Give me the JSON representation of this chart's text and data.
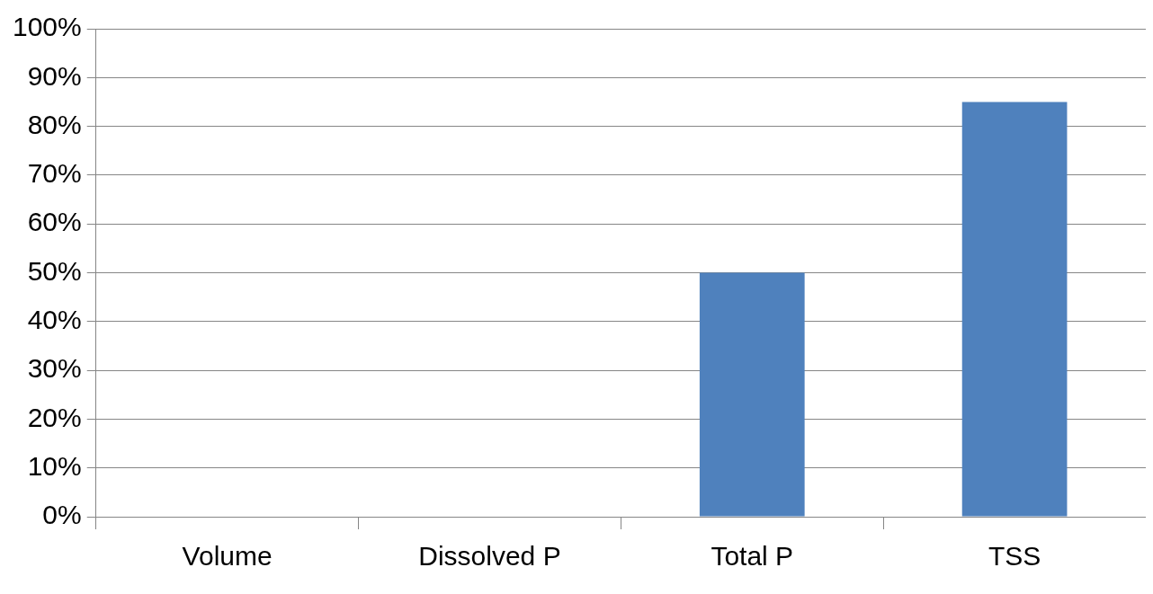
{
  "chart_data": {
    "type": "bar",
    "categories": [
      "Volume",
      "Dissolved P",
      "Total P",
      "TSS"
    ],
    "values": [
      0,
      0,
      50,
      85
    ],
    "color": "#4f81bd",
    "ylim": [
      0,
      100
    ],
    "yticks": [
      {
        "value": 0,
        "label": "0%"
      },
      {
        "value": 10,
        "label": "10%"
      },
      {
        "value": 20,
        "label": "20%"
      },
      {
        "value": 30,
        "label": "30%"
      },
      {
        "value": 40,
        "label": "40%"
      },
      {
        "value": 50,
        "label": "50%"
      },
      {
        "value": 60,
        "label": "60%"
      },
      {
        "value": 70,
        "label": "70%"
      },
      {
        "value": 80,
        "label": "80%"
      },
      {
        "value": 90,
        "label": "90%"
      },
      {
        "value": 100,
        "label": "100%"
      }
    ],
    "grid": "y",
    "legend": false
  }
}
